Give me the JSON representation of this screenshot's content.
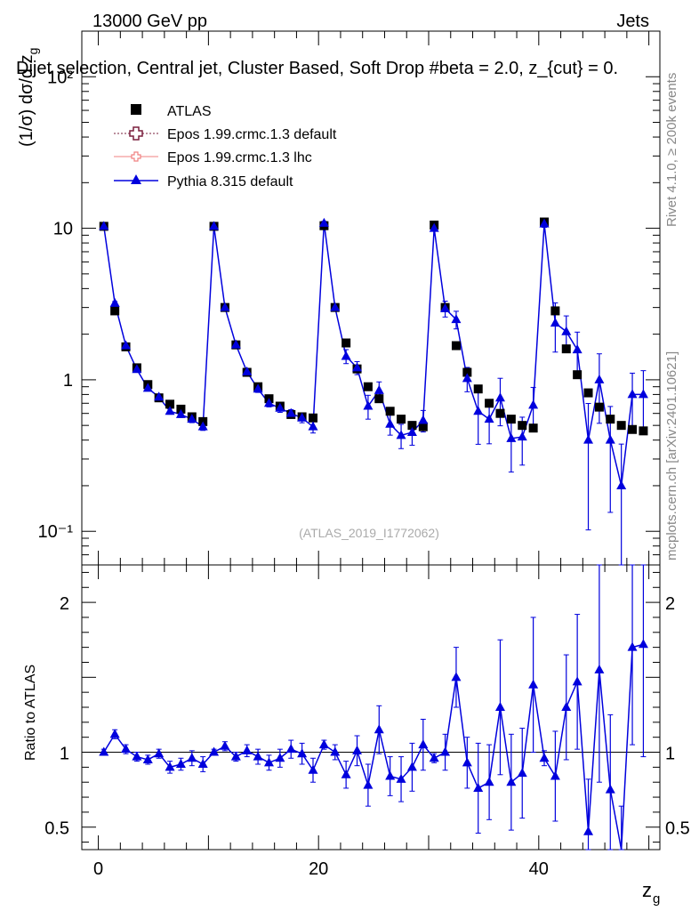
{
  "header": {
    "energy_label": "13000 GeV pp",
    "category_label": "Jets",
    "selection_title": "Dijet selection, Central jet, Cluster Based, Soft Drop #beta = 2.0, z_{cut} = 0.",
    "analysis_id": "(ATLAS_2019_I1772062)",
    "rivet_label": "Rivet 4.1.0, ≥ 200k events",
    "mcplots_label": "mcplots.cern.ch [arXiv:2401.10621]"
  },
  "chart_data": [
    {
      "type": "scatter",
      "panel": "main",
      "title": "Dijet selection, Central jet, Cluster Based, Soft Drop #beta = 2.0, z_{cut} = 0.",
      "ylabel": "(1/σ) dσ/d z_g",
      "yscale": "log",
      "ylim": [
        0.06,
        200
      ],
      "xlim": [
        -1.5,
        51
      ],
      "yticks": [
        {
          "value": 10,
          "label": "10"
        },
        {
          "value": 1,
          "label": "1"
        },
        {
          "value": 0.1,
          "label": "10⁻¹"
        },
        {
          "value": 100,
          "label": "10²"
        }
      ],
      "legend": {
        "position": "top-left",
        "entries": [
          "ATLAS",
          "Epos 1.99.crmc.1.3 default",
          "Epos 1.99.crmc.1.3 lhc",
          "Pythia 8.315 default"
        ]
      },
      "x": [
        0.5,
        1.5,
        2.5,
        3.5,
        4.5,
        5.5,
        6.5,
        7.5,
        8.5,
        9.5,
        10.5,
        11.5,
        12.5,
        13.5,
        14.5,
        15.5,
        16.5,
        17.5,
        18.5,
        19.5,
        20.5,
        21.5,
        22.5,
        23.5,
        24.5,
        25.5,
        26.5,
        27.5,
        28.5,
        29.5,
        30.5,
        31.5,
        32.5,
        33.5,
        34.5,
        35.5,
        36.5,
        37.5,
        38.5,
        39.5,
        40.5,
        41.5,
        42.5,
        43.5,
        44.5,
        45.5,
        46.5,
        47.5,
        48.5,
        49.5
      ],
      "series": [
        {
          "name": "ATLAS",
          "color": "#000000",
          "marker": "square",
          "values": [
            10.3,
            2.85,
            1.65,
            1.2,
            0.93,
            0.76,
            0.69,
            0.64,
            0.57,
            0.53,
            10.3,
            3.0,
            1.7,
            1.12,
            0.9,
            0.75,
            0.67,
            0.59,
            0.57,
            0.56,
            10.4,
            3.0,
            1.75,
            1.18,
            0.9,
            0.75,
            0.62,
            0.55,
            0.5,
            0.49,
            10.5,
            3.0,
            1.68,
            1.12,
            0.87,
            0.7,
            0.6,
            0.55,
            0.5,
            0.48,
            11.0,
            2.85,
            1.6,
            1.08,
            0.82,
            0.66,
            0.55,
            0.5,
            0.47,
            0.46
          ]
        },
        {
          "name": "Epos 1.99.crmc.1.3 default",
          "color": "#7a1f3d",
          "marker": "open-cross",
          "values": []
        },
        {
          "name": "Epos 1.99.crmc.1.3 lhc",
          "color": "#f08080",
          "marker": "open-cross",
          "values": []
        },
        {
          "name": "Pythia 8.315 default",
          "color": "#0000dd",
          "marker": "triangle",
          "values": [
            10.3,
            3.2,
            1.68,
            1.17,
            0.88,
            0.77,
            0.62,
            0.59,
            0.55,
            0.49,
            10.3,
            3.0,
            1.7,
            1.13,
            0.87,
            0.7,
            0.65,
            0.6,
            0.56,
            0.49,
            10.8,
            3.0,
            1.43,
            1.2,
            0.67,
            0.85,
            0.51,
            0.43,
            0.45,
            0.54,
            10.0,
            2.95,
            2.5,
            1.02,
            0.62,
            0.55,
            0.76,
            0.41,
            0.42,
            0.68,
            10.7,
            2.37,
            2.08,
            1.58,
            0.4,
            1.0,
            0.4,
            0.2,
            0.8,
            0.8
          ]
        }
      ]
    },
    {
      "type": "scatter",
      "panel": "ratio",
      "xlabel": "z_g",
      "ylabel": "Ratio to ATLAS",
      "ylim": [
        0.35,
        2.25
      ],
      "xlim": [
        -1.5,
        51
      ],
      "xticks": [
        0,
        20,
        40
      ],
      "yticks": [
        0.5,
        1,
        2
      ],
      "series": [
        {
          "name": "Pythia 8.315 default / ATLAS",
          "color": "#0000dd",
          "marker": "triangle",
          "values": [
            1.0,
            1.12,
            1.02,
            0.97,
            0.95,
            0.99,
            0.9,
            0.92,
            0.96,
            0.92,
            1.0,
            1.04,
            0.97,
            1.01,
            0.97,
            0.93,
            0.96,
            1.02,
            0.99,
            0.88,
            1.05,
            1.0,
            0.85,
            1.01,
            0.78,
            1.15,
            0.84,
            0.82,
            0.9,
            1.05,
            0.96,
            1.0,
            1.5,
            0.93,
            0.76,
            0.8,
            1.3,
            0.8,
            0.86,
            1.45,
            0.96,
            0.84,
            1.3,
            1.47,
            0.47,
            1.55,
            0.75,
            0.34,
            1.7,
            1.72
          ],
          "err_lo": [
            0.02,
            0.03,
            0.03,
            0.03,
            0.03,
            0.03,
            0.04,
            0.04,
            0.05,
            0.05,
            0.02,
            0.03,
            0.03,
            0.04,
            0.05,
            0.05,
            0.06,
            0.06,
            0.07,
            0.08,
            0.03,
            0.05,
            0.09,
            0.1,
            0.14,
            0.16,
            0.13,
            0.15,
            0.16,
            0.17,
            0.03,
            0.12,
            0.2,
            0.17,
            0.3,
            0.25,
            0.45,
            0.32,
            0.3,
            0.45,
            0.05,
            0.3,
            0.35,
            0.45,
            0.35,
            0.75,
            0.5,
            0.3,
            0.65,
            0.75
          ],
          "err_hi": [
            0.02,
            0.03,
            0.03,
            0.03,
            0.03,
            0.03,
            0.04,
            0.04,
            0.05,
            0.05,
            0.02,
            0.03,
            0.03,
            0.04,
            0.05,
            0.05,
            0.06,
            0.06,
            0.07,
            0.08,
            0.03,
            0.05,
            0.09,
            0.1,
            0.14,
            0.16,
            0.13,
            0.15,
            0.16,
            0.17,
            0.03,
            0.12,
            0.2,
            0.17,
            0.3,
            0.25,
            0.45,
            0.32,
            0.3,
            0.45,
            0.05,
            0.3,
            0.35,
            0.45,
            0.35,
            0.75,
            0.5,
            0.3,
            0.65,
            0.75
          ]
        }
      ]
    }
  ]
}
